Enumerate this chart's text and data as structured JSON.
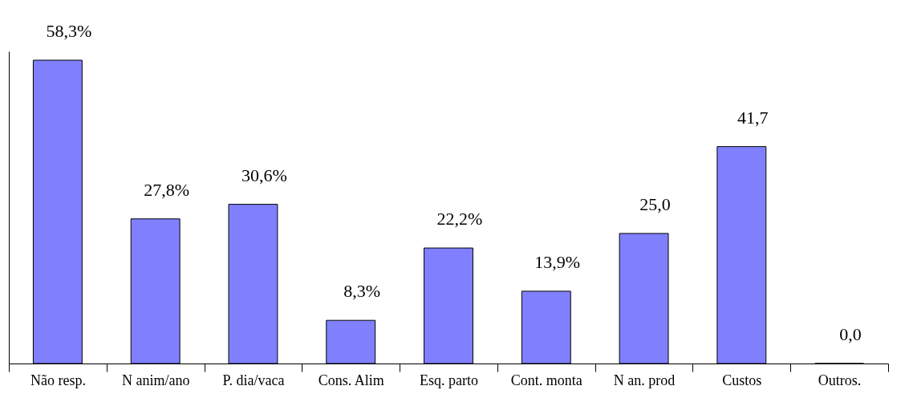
{
  "chart_data": {
    "type": "bar",
    "categories": [
      "Não resp.",
      "N anim/ano",
      "P. dia/vaca",
      "Cons. Alim",
      "Esq. parto",
      "Cont. monta",
      "N an. prod",
      "Custos",
      "Outros."
    ],
    "values": [
      58.3,
      27.8,
      30.6,
      8.3,
      22.2,
      13.9,
      25.0,
      41.7,
      0.0
    ],
    "value_labels": [
      "58,3%",
      "27,8%",
      "30,6%",
      "8,3%",
      "22,2%",
      "13,9%",
      "25,0",
      "41,7",
      "0,0"
    ],
    "color": "#8080ff"
  }
}
